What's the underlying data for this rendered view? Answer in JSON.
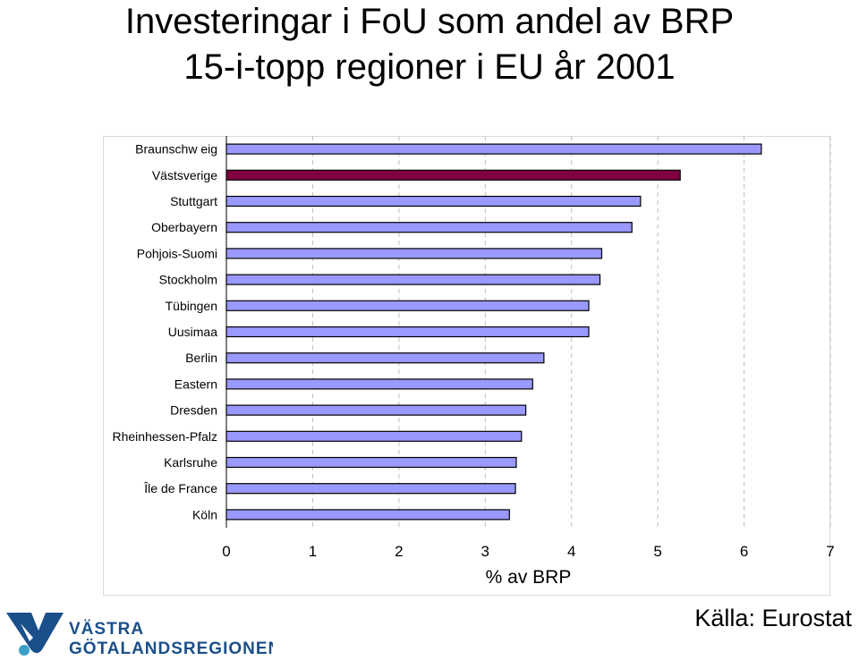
{
  "title_line_1": "Investeringar i FoU som andel av BRP",
  "title_line_2": "15-i-topp regioner i EU år 2001",
  "source": "Källa: Eurostat",
  "logo": {
    "line_1": "VÄSTRA",
    "line_2": "GÖTALANDSREGIONEN",
    "icon": "vgr-logo-icon"
  },
  "chart_data": {
    "type": "bar",
    "orientation": "horizontal",
    "title": "",
    "xlabel": "% av BRP",
    "ylabel": "",
    "xlim": [
      0,
      7
    ],
    "xticks": [
      "0",
      "1",
      "2",
      "3",
      "4",
      "5",
      "6",
      "7"
    ],
    "grid": "vertical dashed",
    "categories": [
      "Braunschw eig",
      "Västsverige",
      "Stuttgart",
      "Oberbayern",
      "Pohjois-Suomi",
      "Stockholm",
      "Tübingen",
      "Uusimaa",
      "Berlin",
      "Eastern",
      "Dresden",
      "Rheinhessen-Pfalz",
      "Karlsruhe",
      "Île de France",
      "Köln"
    ],
    "values": [
      6.2,
      5.26,
      4.8,
      4.7,
      4.35,
      4.33,
      4.2,
      4.2,
      3.68,
      3.55,
      3.47,
      3.42,
      3.36,
      3.35,
      3.28
    ],
    "colors": {
      "default": "#9999ff",
      "highlight": "#800040",
      "highlight_category": "Västsverige",
      "grid": "#bfbfbf",
      "frame": "#d9d9d9"
    }
  }
}
